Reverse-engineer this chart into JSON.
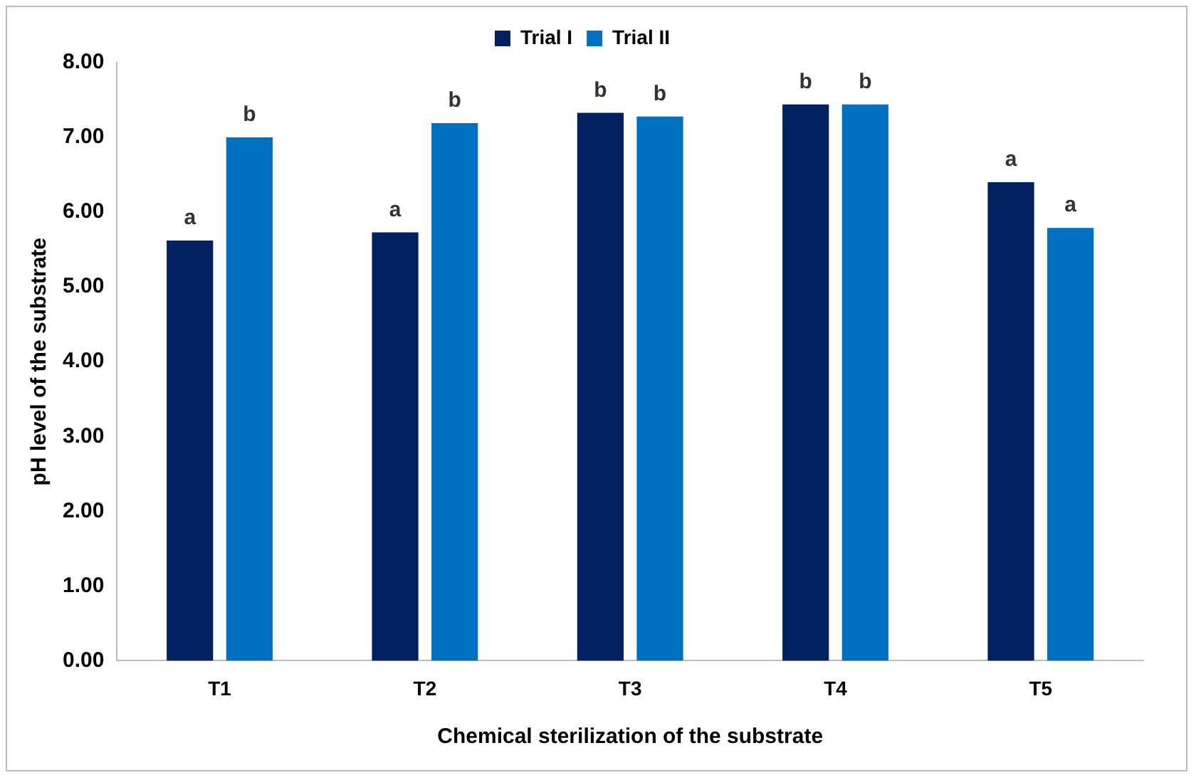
{
  "chart_data": {
    "type": "bar",
    "xlabel": "Chemical sterilization of the substrate",
    "ylabel": "pH level of the substrate",
    "categories": [
      "T1",
      "T2",
      "T3",
      "T4",
      "T5"
    ],
    "series": [
      {
        "name": "Trial I",
        "color": "#002060",
        "values": [
          5.62,
          5.73,
          7.33,
          7.44,
          6.4
        ],
        "value_labels": [
          "a",
          "a",
          "b",
          "b",
          "a"
        ]
      },
      {
        "name": "Trial II",
        "color": "#0070c0",
        "values": [
          7.0,
          7.19,
          7.28,
          7.44,
          5.79
        ],
        "value_labels": [
          "b",
          "b",
          "b",
          "b",
          "a"
        ]
      }
    ],
    "ylim": [
      0,
      8
    ],
    "yticks": [
      {
        "value": 0,
        "label": "0.00"
      },
      {
        "value": 1,
        "label": "1.00"
      },
      {
        "value": 2,
        "label": "2.00"
      },
      {
        "value": 3,
        "label": "3.00"
      },
      {
        "value": 4,
        "label": "4.00"
      },
      {
        "value": 5,
        "label": "5.00"
      },
      {
        "value": 6,
        "label": "6.00"
      },
      {
        "value": 7,
        "label": "7.00"
      },
      {
        "value": 8,
        "label": "8.00"
      }
    ],
    "grid": false,
    "legend": "top"
  }
}
